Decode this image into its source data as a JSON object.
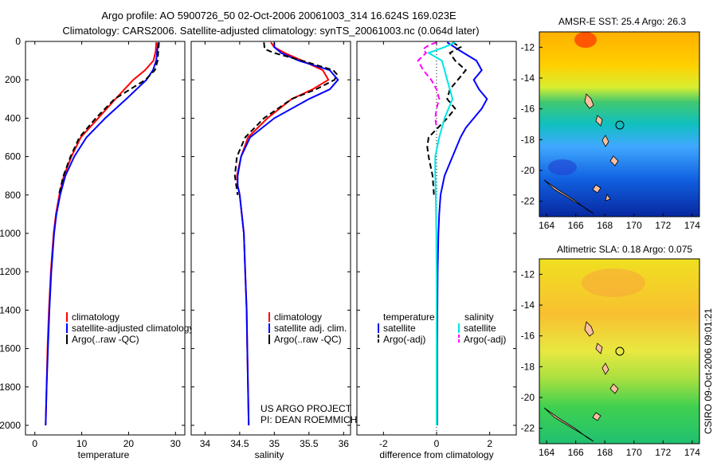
{
  "header": {
    "line1": "Argo profile: AO 5900726_50 02-Oct-2006 20061003_314 16.624S 169.023E",
    "line2": "Climatology: CARS2006. Satellite-adjusted climatology: synTS_20061003.nc (0.064d later)"
  },
  "colors": {
    "clim": "#ff0000",
    "sat": "#0000ff",
    "argo": "#000000",
    "sat_sal": "#00e5e5",
    "argo_sal": "#ff00ff"
  },
  "chart_data": [
    {
      "type": "line",
      "id": "temperature",
      "xlabel": "temperature",
      "xlim": [
        -2,
        32
      ],
      "ylim": [
        0,
        2050
      ],
      "y_reversed": true,
      "xticks": [
        "0",
        "10",
        "20",
        "30"
      ],
      "yticks": [
        "0",
        "200",
        "400",
        "600",
        "800",
        "1000",
        "1200",
        "1400",
        "1600",
        "1800",
        "2000"
      ],
      "legend": [
        "climatology",
        "satellite-adjusted climatology",
        "Argo(..raw -QC)"
      ],
      "series": [
        {
          "name": "climatology",
          "depth": [
            5,
            50,
            100,
            150,
            200,
            300,
            400,
            500,
            600,
            700,
            800,
            900,
            1000,
            1200,
            1400,
            1600,
            1800,
            2000
          ],
          "values": [
            25.9,
            25.8,
            25.3,
            23.5,
            21.0,
            17.2,
            13.5,
            9.8,
            7.8,
            6.2,
            5.2,
            4.5,
            4.0,
            3.4,
            3.0,
            2.7,
            2.5,
            2.3
          ]
        },
        {
          "name": "satellite-adjusted climatology",
          "depth": [
            5,
            50,
            100,
            150,
            200,
            300,
            400,
            500,
            600,
            700,
            800,
            900,
            1000,
            1200,
            1400,
            1600,
            1800,
            2000
          ],
          "values": [
            26.3,
            26.1,
            25.9,
            25.2,
            23.8,
            19.5,
            15.0,
            11.0,
            8.4,
            6.5,
            5.4,
            4.6,
            4.1,
            3.5,
            3.1,
            2.8,
            2.5,
            2.3
          ]
        },
        {
          "name": "Argo(..raw -QC)",
          "depth": [
            5,
            30,
            60,
            100,
            150,
            200,
            300,
            400,
            500,
            600,
            700,
            800
          ],
          "values": [
            26.5,
            26.4,
            26.3,
            26.2,
            25.6,
            23.6,
            17.0,
            13.0,
            9.5,
            7.6,
            6.1,
            5.1
          ]
        }
      ]
    },
    {
      "type": "line",
      "id": "salinity",
      "xlabel": "salinity",
      "xlim": [
        33.8,
        36.1
      ],
      "ylim": [
        0,
        2050
      ],
      "y_reversed": true,
      "xticks": [
        "34",
        "34.5",
        "35",
        "35.5",
        "36"
      ],
      "legend": [
        "climatology",
        "satellite adj. clim.",
        "Argo(..raw -QC)"
      ],
      "annotation": [
        "US ARGO PROJECT",
        "PI: DEAN ROEMMICH"
      ],
      "series": [
        {
          "name": "climatology",
          "depth": [
            5,
            30,
            60,
            100,
            150,
            200,
            250,
            300,
            400,
            500,
            600,
            700,
            750,
            800,
            900,
            1000,
            1200,
            1400,
            1600,
            1800,
            2000
          ],
          "values": [
            34.95,
            35.0,
            35.15,
            35.4,
            35.7,
            35.78,
            35.55,
            35.25,
            34.9,
            34.62,
            34.52,
            34.46,
            34.47,
            34.5,
            34.53,
            34.56,
            34.58,
            34.6,
            34.61,
            34.62,
            34.63
          ]
        },
        {
          "name": "satellite adj. clim.",
          "depth": [
            5,
            30,
            60,
            100,
            150,
            200,
            250,
            300,
            400,
            500,
            600,
            700,
            750,
            800,
            900,
            1000,
            1200,
            1400,
            1600,
            1800,
            2000
          ],
          "values": [
            35.0,
            35.0,
            35.1,
            35.35,
            35.8,
            35.92,
            35.8,
            35.5,
            35.0,
            34.65,
            34.52,
            34.47,
            34.47,
            34.5,
            34.53,
            34.56,
            34.58,
            34.6,
            34.61,
            34.62,
            34.63
          ]
        },
        {
          "name": "Argo(..raw -QC)",
          "depth": [
            5,
            40,
            60,
            100,
            150,
            170,
            200,
            250,
            300,
            400,
            500,
            600,
            700,
            750,
            800
          ],
          "values": [
            34.85,
            34.86,
            35.0,
            35.4,
            35.85,
            35.9,
            35.87,
            35.6,
            35.25,
            34.85,
            34.58,
            34.46,
            34.43,
            34.45,
            34.47
          ]
        }
      ]
    },
    {
      "type": "line",
      "id": "difference",
      "xlabel": "difference from climatology",
      "xlim": [
        -3,
        3
      ],
      "ylim": [
        0,
        2050
      ],
      "y_reversed": true,
      "xticks": [
        "-2",
        "0",
        "2"
      ],
      "legend_headers": [
        "temperature",
        "salinity"
      ],
      "legend": [
        "satellite",
        "Argo(-adj)",
        "satellite",
        "Argo(-adj)"
      ],
      "series": [
        {
          "name": "temperature satellite",
          "depth": [
            5,
            50,
            100,
            150,
            200,
            250,
            300,
            350,
            400,
            450,
            500,
            600,
            700,
            800,
            900,
            1000,
            1200,
            1400,
            1600,
            1800,
            2000
          ],
          "values": [
            0.4,
            0.9,
            1.5,
            1.7,
            1.4,
            1.6,
            1.9,
            1.7,
            1.4,
            1.1,
            0.9,
            0.6,
            0.3,
            0.15,
            0.1,
            0.07,
            0.04,
            0.03,
            0.02,
            0.02,
            0.02
          ]
        },
        {
          "name": "temperature Argo(-adj)",
          "depth": [
            5,
            30,
            60,
            100,
            150,
            200,
            250,
            300,
            350,
            400,
            450,
            500,
            550,
            600,
            700,
            800
          ],
          "values": [
            0.6,
            0.9,
            0.5,
            0.7,
            1.1,
            0.8,
            0.5,
            0.4,
            0.7,
            0.4,
            0.05,
            -0.3,
            -0.35,
            -0.3,
            -0.15,
            -0.1
          ]
        },
        {
          "name": "salinity satellite",
          "depth": [
            5,
            30,
            60,
            100,
            150,
            200,
            250,
            300,
            400,
            500,
            600,
            700,
            800,
            1000,
            1200,
            1400,
            1600,
            1800,
            2000
          ],
          "values": [
            0.7,
            0.3,
            -0.3,
            0.2,
            0.3,
            0.4,
            0.5,
            0.6,
            0.3,
            0.1,
            -0.05,
            -0.05,
            -0.03,
            -0.01,
            0,
            0,
            0,
            0,
            0
          ]
        },
        {
          "name": "salinity Argo(-adj)",
          "depth": [
            5,
            20,
            40,
            60,
            100,
            150,
            200,
            250,
            300,
            350,
            400,
            450
          ],
          "values": [
            0.0,
            -0.3,
            -0.5,
            -0.4,
            -0.7,
            -0.5,
            -0.2,
            0.0,
            0.1,
            0.0,
            -0.05,
            0.0
          ]
        }
      ]
    },
    {
      "type": "heatmap",
      "id": "sst",
      "title": "AMSR-E SST: 25.4 Argo: 26.3",
      "xticks": [
        "164",
        "166",
        "168",
        "170",
        "172",
        "174"
      ],
      "yticks": [
        "-12",
        "-14",
        "-16",
        "-18",
        "-20",
        "-22"
      ],
      "xlim": [
        163.5,
        174.5
      ],
      "ylim": [
        -23,
        -11
      ]
    },
    {
      "type": "heatmap",
      "id": "sla",
      "title": "Altimetric SLA: 0.18 Argo: 0.075",
      "xticks": [
        "164",
        "166",
        "168",
        "170",
        "172",
        "174"
      ],
      "yticks": [
        "-12",
        "-14",
        "-16",
        "-18",
        "-20",
        "-22"
      ],
      "xlim": [
        163.5,
        174.5
      ],
      "ylim": [
        -23,
        -11
      ]
    }
  ],
  "credit": "CSIRO 09-Oct-2006 09:01:21"
}
